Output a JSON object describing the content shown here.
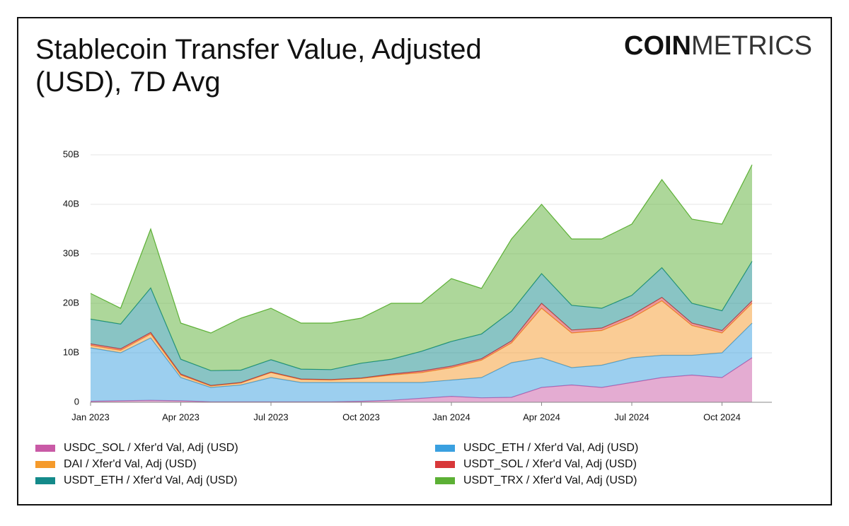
{
  "chart_data": {
    "type": "stacked_area",
    "title": "Stablecoin Transfer Value, Adjusted (USD), 7D Avg",
    "brand": {
      "bold": "COIN",
      "light": "METRICS"
    },
    "x": [
      "2023-01",
      "2023-02",
      "2023-03",
      "2023-04",
      "2023-05",
      "2023-06",
      "2023-07",
      "2023-08",
      "2023-09",
      "2023-10",
      "2023-11",
      "2023-12",
      "2024-01",
      "2024-02",
      "2024-03",
      "2024-04",
      "2024-05",
      "2024-06",
      "2024-07",
      "2024-08",
      "2024-09",
      "2024-10",
      "2024-11"
    ],
    "xticks": [
      {
        "value": "2023-01",
        "label": "Jan 2023"
      },
      {
        "value": "2023-04",
        "label": "Apr 2023"
      },
      {
        "value": "2023-07",
        "label": "Jul 2023"
      },
      {
        "value": "2023-10",
        "label": "Oct 2023"
      },
      {
        "value": "2024-01",
        "label": "Jan 2024"
      },
      {
        "value": "2024-04",
        "label": "Apr 2024"
      },
      {
        "value": "2024-07",
        "label": "Jul 2024"
      },
      {
        "value": "2024-10",
        "label": "Oct 2024"
      }
    ],
    "ylim": [
      0,
      57000000000
    ],
    "yticks": [
      0,
      {
        "value": 10000000000,
        "label": "10B"
      },
      {
        "value": 20000000000,
        "label": "20B"
      },
      {
        "value": 30000000000,
        "label": "30B"
      },
      {
        "value": 40000000000,
        "label": "40B"
      },
      {
        "value": 50000000000,
        "label": "50B"
      }
    ],
    "grid": true,
    "series": [
      {
        "name": "USDC_SOL / Xfer'd Val, Adj (USD)",
        "color": "#c95aa6",
        "values": [
          200000000.0,
          300000000.0,
          400000000.0,
          300000000.0,
          100000000.0,
          100000000.0,
          100000000.0,
          100000000.0,
          100000000.0,
          200000000.0,
          400000000.0,
          800000000.0,
          1200000000.0,
          900000000.0,
          1000000000.0,
          3000000000.0,
          3500000000.0,
          3000000000.0,
          4000000000.0,
          5000000000.0,
          5500000000.0,
          5000000000.0,
          9000000000.0
        ]
      },
      {
        "name": "USDC_ETH / Xfer'd Val, Adj (USD)",
        "color": "#3aa0e0",
        "values": [
          10800000000.0,
          9700000000.0,
          12600000000.0,
          4700000000.0,
          2900000000.0,
          3400000000.0,
          4900000000.0,
          3900000000.0,
          3900000000.0,
          3800000000.0,
          3600000000.0,
          3200000000.0,
          3300000000.0,
          4100000000.0,
          7000000000.0,
          6000000000.0,
          3500000000.0,
          4500000000.0,
          5000000000.0,
          4500000000.0,
          4000000000.0,
          5000000000.0,
          7000000000.0
        ]
      },
      {
        "name": "DAI / Xfer'd Val, Adj (USD)",
        "color": "#f59a2b",
        "values": [
          500000000.0,
          500000000.0,
          800000000.0,
          500000000.0,
          300000000.0,
          400000000.0,
          1000000000.0,
          600000000.0,
          500000000.0,
          800000000.0,
          1500000000.0,
          2000000000.0,
          2500000000.0,
          3500000000.0,
          4000000000.0,
          10000000000.0,
          7000000000.0,
          7000000000.0,
          8000000000.0,
          11000000000.0,
          6000000000.0,
          4000000000.0,
          4000000000.0
        ]
      },
      {
        "name": "USDT_SOL / Xfer'd Val, Adj (USD)",
        "color": "#d8383a",
        "values": [
          300000000.0,
          300000000.0,
          300000000.0,
          200000000.0,
          100000000.0,
          100000000.0,
          100000000.0,
          100000000.0,
          100000000.0,
          100000000.0,
          200000000.0,
          300000000.0,
          300000000.0,
          300000000.0,
          400000000.0,
          1000000000.0,
          600000000.0,
          500000000.0,
          600000000.0,
          700000000.0,
          500000000.0,
          500000000.0,
          500000000.0
        ]
      },
      {
        "name": "USDT_ETH / Xfer'd Val, Adj (USD)",
        "color": "#148a8a",
        "values": [
          5000000000.0,
          5000000000.0,
          9000000000.0,
          3000000000.0,
          3000000000.0,
          2500000000.0,
          2500000000.0,
          2000000000.0,
          2000000000.0,
          3000000000.0,
          3000000000.0,
          4000000000.0,
          5000000000.0,
          5000000000.0,
          6000000000.0,
          6000000000.0,
          5000000000.0,
          4000000000.0,
          4000000000.0,
          6000000000.0,
          4000000000.0,
          4000000000.0,
          8000000000.0
        ]
      },
      {
        "name": "USDT_TRX / Xfer'd Val, Adj (USD)",
        "color": "#5cb035",
        "values": [
          5200000000.0,
          3200000000.0,
          11900000000.0,
          7300000000.0,
          7600000000.0,
          10500000000.0,
          10400000000.0,
          9300000000.0,
          9400000000.0,
          9100000000.0,
          11300000000.0,
          9700000000.0,
          12700000000.0,
          9200000000.0,
          14600000000.0,
          14000000000.0,
          13400000000.0,
          14000000000.0,
          14400000000.0,
          17800000000.0,
          17000000000.0,
          17500000000.0,
          19500000000.0
        ]
      }
    ]
  }
}
